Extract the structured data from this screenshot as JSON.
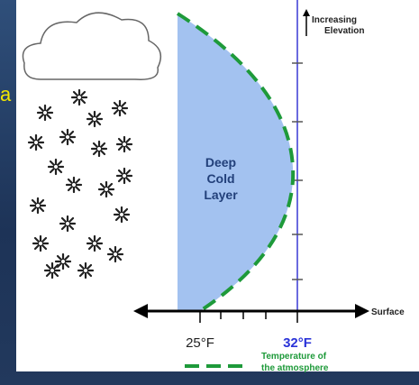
{
  "side_letter": "a",
  "layer_label": [
    "Deep",
    "Cold",
    "Layer"
  ],
  "elevation_label": [
    "Increasing",
    "Elevation"
  ],
  "surface_label": "Surface",
  "axis_labels": [
    "25°F",
    "32°F"
  ],
  "legend": [
    "Temperature of",
    "the atmosphere"
  ]
}
